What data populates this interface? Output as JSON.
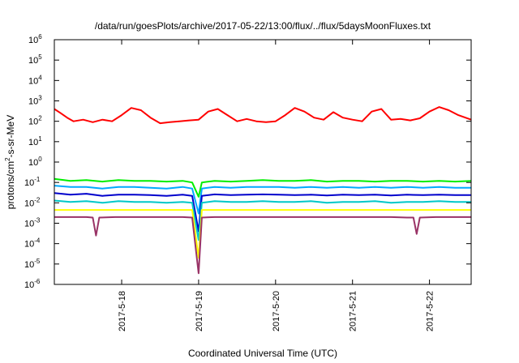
{
  "chart_data": {
    "type": "line",
    "title": "/data/run/goesPlots/archive/2017-05-22/13:00/flux/../flux/5daysMoonFluxes.txt",
    "xlabel": "Coordinated Universal Time (UTC)",
    "ylabel": {
      "prefix": "protons/cm",
      "sup": "2",
      "suffix": "-s-sr-MeV"
    },
    "y_scale": "log",
    "ylim": [
      1e-06,
      1000000.0
    ],
    "y_ticks": [
      {
        "value": 1e-06,
        "base": "10",
        "exp": "-6"
      },
      {
        "value": 1e-05,
        "base": "10",
        "exp": "-5"
      },
      {
        "value": 0.0001,
        "base": "10",
        "exp": "-4"
      },
      {
        "value": 0.001,
        "base": "10",
        "exp": "-3"
      },
      {
        "value": 0.01,
        "base": "10",
        "exp": "-2"
      },
      {
        "value": 0.1,
        "base": "10",
        "exp": "-1"
      },
      {
        "value": 1.0,
        "base": "10",
        "exp": "0"
      },
      {
        "value": 10.0,
        "base": "10",
        "exp": "1"
      },
      {
        "value": 100.0,
        "base": "10",
        "exp": "2"
      },
      {
        "value": 1000.0,
        "base": "10",
        "exp": "3"
      },
      {
        "value": 10000.0,
        "base": "10",
        "exp": "4"
      },
      {
        "value": 100000.0,
        "base": "10",
        "exp": "5"
      },
      {
        "value": 1000000.0,
        "base": "10",
        "exp": "6"
      }
    ],
    "xlim": [
      "2017-05-17T03:00",
      "2017-05-22T13:00"
    ],
    "x_ticks": [
      {
        "value": "2017-05-18T00:00",
        "label": "2017-5-18"
      },
      {
        "value": "2017-05-19T00:00",
        "label": "2017-5-19"
      },
      {
        "value": "2017-05-20T00:00",
        "label": "2017-5-20"
      },
      {
        "value": "2017-05-21T00:00",
        "label": "2017-5-21"
      },
      {
        "value": "2017-05-22T00:00",
        "label": "2017-5-22"
      }
    ],
    "grid": false,
    "legend": "none",
    "series": [
      {
        "color": "#ff0000",
        "x": [
          "2017-05-17T03:00",
          "2017-05-17T05:00",
          "2017-05-17T07:00",
          "2017-05-17T09:00",
          "2017-05-17T12:00",
          "2017-05-17T15:00",
          "2017-05-17T18:00",
          "2017-05-17T21:00",
          "2017-05-18T00:00",
          "2017-05-18T03:00",
          "2017-05-18T06:00",
          "2017-05-18T09:00",
          "2017-05-18T12:00",
          "2017-05-18T15:00",
          "2017-05-18T18:00",
          "2017-05-18T21:00",
          "2017-05-19T00:00",
          "2017-05-19T03:00",
          "2017-05-19T06:00",
          "2017-05-19T09:00",
          "2017-05-19T12:00",
          "2017-05-19T15:00",
          "2017-05-19T18:00",
          "2017-05-19T21:00",
          "2017-05-20T00:00",
          "2017-05-20T03:00",
          "2017-05-20T06:00",
          "2017-05-20T09:00",
          "2017-05-20T12:00",
          "2017-05-20T15:00",
          "2017-05-20T18:00",
          "2017-05-20T21:00",
          "2017-05-21T00:00",
          "2017-05-21T03:00",
          "2017-05-21T06:00",
          "2017-05-21T09:00",
          "2017-05-21T12:00",
          "2017-05-21T15:00",
          "2017-05-21T18:00",
          "2017-05-21T21:00",
          "2017-05-22T00:00",
          "2017-05-22T03:00",
          "2017-05-22T06:00",
          "2017-05-22T09:00",
          "2017-05-22T13:00"
        ],
        "y": [
          400,
          250,
          150,
          100,
          120,
          90,
          120,
          100,
          200,
          450,
          350,
          150,
          80,
          90,
          100,
          110,
          120,
          300,
          400,
          200,
          100,
          130,
          100,
          90,
          100,
          200,
          450,
          300,
          150,
          120,
          280,
          150,
          120,
          100,
          300,
          400,
          120,
          130,
          110,
          140,
          300,
          500,
          350,
          200,
          120
        ]
      },
      {
        "color": "#00ee00",
        "x": [
          "2017-05-17T03:00",
          "2017-05-17T08:00",
          "2017-05-17T13:00",
          "2017-05-17T18:00",
          "2017-05-17T23:00",
          "2017-05-18T04:00",
          "2017-05-18T09:00",
          "2017-05-18T14:00",
          "2017-05-18T19:00",
          "2017-05-18T22:00",
          "2017-05-19T00:00",
          "2017-05-19T01:00",
          "2017-05-19T05:00",
          "2017-05-19T10:00",
          "2017-05-19T15:00",
          "2017-05-19T20:00",
          "2017-05-20T01:00",
          "2017-05-20T06:00",
          "2017-05-20T11:00",
          "2017-05-20T16:00",
          "2017-05-20T21:00",
          "2017-05-21T02:00",
          "2017-05-21T07:00",
          "2017-05-21T12:00",
          "2017-05-21T17:00",
          "2017-05-21T22:00",
          "2017-05-22T03:00",
          "2017-05-22T08:00",
          "2017-05-22T13:00"
        ],
        "y": [
          0.15,
          0.12,
          0.13,
          0.11,
          0.13,
          0.12,
          0.12,
          0.11,
          0.12,
          0.1,
          0.02,
          0.1,
          0.12,
          0.11,
          0.12,
          0.13,
          0.12,
          0.12,
          0.13,
          0.11,
          0.12,
          0.12,
          0.11,
          0.12,
          0.12,
          0.11,
          0.12,
          0.11,
          0.12
        ]
      },
      {
        "color": "#00aaff",
        "x": [
          "2017-05-17T03:00",
          "2017-05-17T08:00",
          "2017-05-17T13:00",
          "2017-05-17T18:00",
          "2017-05-17T23:00",
          "2017-05-18T04:00",
          "2017-05-18T09:00",
          "2017-05-18T14:00",
          "2017-05-18T19:00",
          "2017-05-18T22:00",
          "2017-05-19T00:00",
          "2017-05-19T01:00",
          "2017-05-19T05:00",
          "2017-05-19T10:00",
          "2017-05-19T15:00",
          "2017-05-19T20:00",
          "2017-05-20T01:00",
          "2017-05-20T06:00",
          "2017-05-20T11:00",
          "2017-05-20T16:00",
          "2017-05-20T21:00",
          "2017-05-21T02:00",
          "2017-05-21T07:00",
          "2017-05-21T12:00",
          "2017-05-21T17:00",
          "2017-05-21T22:00",
          "2017-05-22T03:00",
          "2017-05-22T08:00",
          "2017-05-22T13:00"
        ],
        "y": [
          0.07,
          0.06,
          0.06,
          0.05,
          0.06,
          0.06,
          0.055,
          0.05,
          0.06,
          0.05,
          0.003,
          0.05,
          0.06,
          0.055,
          0.06,
          0.06,
          0.06,
          0.055,
          0.06,
          0.055,
          0.06,
          0.055,
          0.06,
          0.055,
          0.06,
          0.055,
          0.06,
          0.055,
          0.055
        ]
      },
      {
        "color": "#0000cc",
        "x": [
          "2017-05-17T03:00",
          "2017-05-17T08:00",
          "2017-05-17T13:00",
          "2017-05-17T18:00",
          "2017-05-17T23:00",
          "2017-05-18T04:00",
          "2017-05-18T09:00",
          "2017-05-18T14:00",
          "2017-05-18T19:00",
          "2017-05-18T22:00",
          "2017-05-19T00:00",
          "2017-05-19T01:00",
          "2017-05-19T05:00",
          "2017-05-19T10:00",
          "2017-05-19T15:00",
          "2017-05-19T20:00",
          "2017-05-20T01:00",
          "2017-05-20T06:00",
          "2017-05-20T11:00",
          "2017-05-20T16:00",
          "2017-05-20T21:00",
          "2017-05-21T02:00",
          "2017-05-21T07:00",
          "2017-05-21T12:00",
          "2017-05-21T17:00",
          "2017-05-21T22:00",
          "2017-05-22T03:00",
          "2017-05-22T08:00",
          "2017-05-22T13:00"
        ],
        "y": [
          0.03,
          0.025,
          0.028,
          0.022,
          0.025,
          0.025,
          0.024,
          0.022,
          0.025,
          0.022,
          0.0004,
          0.022,
          0.026,
          0.024,
          0.025,
          0.026,
          0.025,
          0.024,
          0.025,
          0.023,
          0.025,
          0.024,
          0.025,
          0.023,
          0.025,
          0.024,
          0.025,
          0.024,
          0.024
        ]
      },
      {
        "color": "#00c8c8",
        "x": [
          "2017-05-17T03:00",
          "2017-05-17T08:00",
          "2017-05-17T13:00",
          "2017-05-17T18:00",
          "2017-05-17T23:00",
          "2017-05-18T04:00",
          "2017-05-18T09:00",
          "2017-05-18T14:00",
          "2017-05-18T19:00",
          "2017-05-18T22:00",
          "2017-05-19T00:00",
          "2017-05-19T01:00",
          "2017-05-19T05:00",
          "2017-05-19T10:00",
          "2017-05-19T15:00",
          "2017-05-19T20:00",
          "2017-05-20T01:00",
          "2017-05-20T06:00",
          "2017-05-20T11:00",
          "2017-05-20T16:00",
          "2017-05-20T21:00",
          "2017-05-21T02:00",
          "2017-05-21T07:00",
          "2017-05-21T12:00",
          "2017-05-21T17:00",
          "2017-05-21T22:00",
          "2017-05-22T03:00",
          "2017-05-22T08:00",
          "2017-05-22T13:00"
        ],
        "y": [
          0.013,
          0.011,
          0.012,
          0.01,
          0.012,
          0.011,
          0.011,
          0.01,
          0.011,
          0.01,
          0.00015,
          0.01,
          0.012,
          0.011,
          0.011,
          0.012,
          0.011,
          0.011,
          0.012,
          0.01,
          0.011,
          0.011,
          0.012,
          0.01,
          0.011,
          0.011,
          0.012,
          0.011,
          0.011
        ]
      },
      {
        "color": "#ffff00",
        "x": [
          "2017-05-17T03:00",
          "2017-05-17T08:00",
          "2017-05-17T13:00",
          "2017-05-17T18:00",
          "2017-05-17T23:00",
          "2017-05-18T04:00",
          "2017-05-18T09:00",
          "2017-05-18T14:00",
          "2017-05-18T19:00",
          "2017-05-18T22:00",
          "2017-05-19T00:00",
          "2017-05-19T01:00",
          "2017-05-19T05:00",
          "2017-05-19T10:00",
          "2017-05-19T15:00",
          "2017-05-19T20:00",
          "2017-05-20T01:00",
          "2017-05-20T06:00",
          "2017-05-20T11:00",
          "2017-05-20T16:00",
          "2017-05-20T21:00",
          "2017-05-21T02:00",
          "2017-05-21T07:00",
          "2017-05-21T12:00",
          "2017-05-21T17:00",
          "2017-05-21T22:00",
          "2017-05-22T03:00",
          "2017-05-22T08:00",
          "2017-05-22T13:00"
        ],
        "y": [
          0.0045,
          0.0045,
          0.0045,
          0.0045,
          0.0045,
          0.0045,
          0.0045,
          0.0045,
          0.0045,
          0.0045,
          2e-05,
          0.0045,
          0.0045,
          0.0045,
          0.0045,
          0.0045,
          0.0045,
          0.0045,
          0.0045,
          0.0045,
          0.0045,
          0.0045,
          0.0045,
          0.0045,
          0.0045,
          0.0045,
          0.0045,
          0.0045,
          0.0045
        ]
      },
      {
        "color": "#993366",
        "x": [
          "2017-05-17T03:00",
          "2017-05-17T08:00",
          "2017-05-17T13:00",
          "2017-05-17T15:00",
          "2017-05-17T16:00",
          "2017-05-17T17:00",
          "2017-05-17T22:00",
          "2017-05-18T04:00",
          "2017-05-18T09:00",
          "2017-05-18T14:00",
          "2017-05-18T19:00",
          "2017-05-18T22:00",
          "2017-05-19T00:00",
          "2017-05-19T01:00",
          "2017-05-19T05:00",
          "2017-05-19T10:00",
          "2017-05-19T15:00",
          "2017-05-19T20:00",
          "2017-05-20T01:00",
          "2017-05-20T06:00",
          "2017-05-20T11:00",
          "2017-05-20T16:00",
          "2017-05-20T21:00",
          "2017-05-21T02:00",
          "2017-05-21T07:00",
          "2017-05-21T12:00",
          "2017-05-21T17:00",
          "2017-05-21T19:00",
          "2017-05-21T20:00",
          "2017-05-21T21:00",
          "2017-05-22T02:00",
          "2017-05-22T08:00",
          "2017-05-22T13:00"
        ],
        "y": [
          0.002,
          0.002,
          0.002,
          0.0019,
          0.00025,
          0.0019,
          0.002,
          0.002,
          0.002,
          0.002,
          0.002,
          0.0019,
          3.5e-06,
          0.0019,
          0.002,
          0.002,
          0.002,
          0.002,
          0.002,
          0.002,
          0.002,
          0.002,
          0.002,
          0.002,
          0.002,
          0.002,
          0.0019,
          0.0019,
          0.0003,
          0.0019,
          0.002,
          0.002,
          0.002
        ]
      }
    ]
  }
}
